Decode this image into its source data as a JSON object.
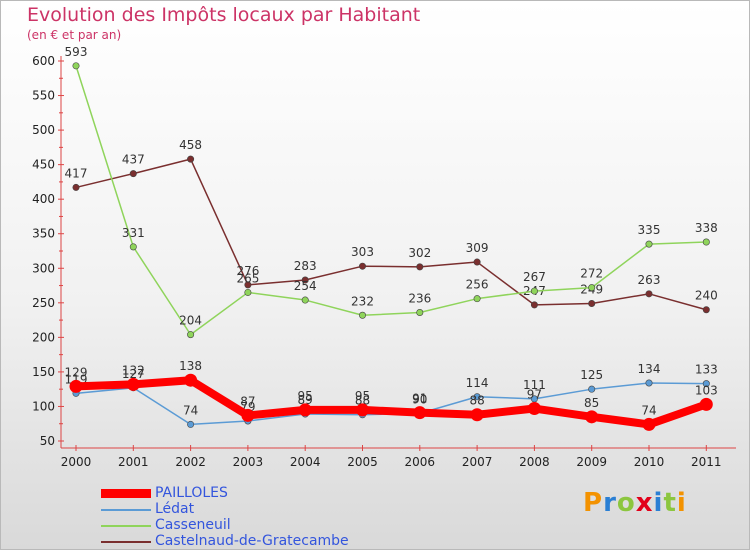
{
  "title": "Evolution des Impôts locaux par Habitant",
  "subtitle": "(en € et par an)",
  "brand": "Proxiti",
  "chart_data": {
    "type": "line",
    "title": "Evolution des Impôts locaux par Habitant",
    "ylabel": "(en € et par an)",
    "xlabel": "",
    "categories": [
      "2000",
      "2001",
      "2002",
      "2003",
      "2004",
      "2005",
      "2006",
      "2007",
      "2008",
      "2009",
      "2010",
      "2011"
    ],
    "ylim": [
      50,
      600
    ],
    "yticks": [
      50,
      100,
      150,
      200,
      250,
      300,
      350,
      400,
      450,
      500,
      550,
      600
    ],
    "grid": false,
    "legend": "bottom-left",
    "series": [
      {
        "name": "Castelnaud-de-Gratecambe",
        "color": "#7a2f2f",
        "values": [
          417,
          437,
          458,
          276,
          283,
          303,
          302,
          309,
          247,
          249,
          263,
          240
        ]
      },
      {
        "name": "Casseneuil",
        "color": "#8fd45b",
        "values": [
          593,
          331,
          204,
          265,
          254,
          232,
          236,
          256,
          267,
          272,
          335,
          338
        ]
      },
      {
        "name": "Lédat",
        "color": "#5b9bd5",
        "values": [
          119,
          127,
          74,
          79,
          89,
          88,
          90,
          114,
          111,
          125,
          134,
          133
        ]
      },
      {
        "name": "PAILLOLES",
        "color": "#ff0000",
        "values": [
          129,
          132,
          138,
          87,
          95,
          95,
          91,
          88,
          97,
          85,
          74,
          103
        ]
      }
    ],
    "legend_order": [
      "PAILLOLES",
      "Lédat",
      "Casseneuil",
      "Castelnaud-de-Gratecambe"
    ]
  }
}
